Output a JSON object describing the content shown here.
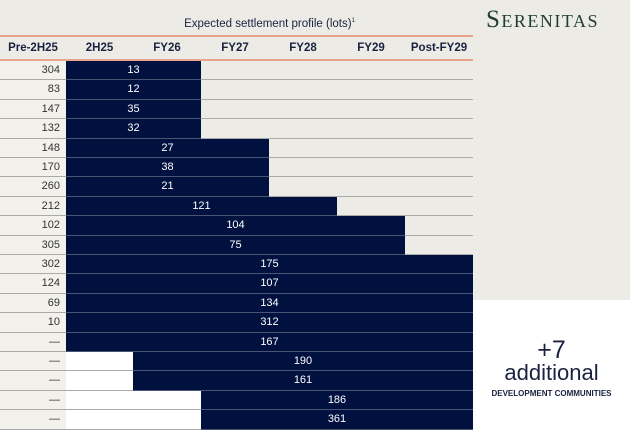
{
  "logo": "Serenitas",
  "title": "Expected settlement profile (lots)",
  "title_footnote": "1",
  "columns": [
    "Pre-2H25",
    "2H25",
    "FY26",
    "FY27",
    "FY28",
    "FY29",
    "Post-FY29"
  ],
  "rows": [
    {
      "pre": "304",
      "value": "13",
      "from": "2H25",
      "to": "FY26"
    },
    {
      "pre": "83",
      "value": "12",
      "from": "2H25",
      "to": "FY26"
    },
    {
      "pre": "147",
      "value": "35",
      "from": "2H25",
      "to": "FY26"
    },
    {
      "pre": "132",
      "value": "32",
      "from": "2H25",
      "to": "FY26"
    },
    {
      "pre": "148",
      "value": "27",
      "from": "2H25",
      "to": "FY27"
    },
    {
      "pre": "170",
      "value": "38",
      "from": "2H25",
      "to": "FY27"
    },
    {
      "pre": "260",
      "value": "21",
      "from": "2H25",
      "to": "FY27"
    },
    {
      "pre": "212",
      "value": "121",
      "from": "2H25",
      "to": "FY28"
    },
    {
      "pre": "102",
      "value": "104",
      "from": "2H25",
      "to": "FY29"
    },
    {
      "pre": "305",
      "value": "75",
      "from": "2H25",
      "to": "FY29"
    },
    {
      "pre": "302",
      "value": "175",
      "from": "2H25",
      "to": "Post-FY29"
    },
    {
      "pre": "124",
      "value": "107",
      "from": "2H25",
      "to": "Post-FY29"
    },
    {
      "pre": "69",
      "value": "134",
      "from": "2H25",
      "to": "Post-FY29"
    },
    {
      "pre": "10",
      "value": "312",
      "from": "2H25",
      "to": "Post-FY29"
    },
    {
      "pre": "—",
      "value": "167",
      "from": "2H25",
      "to": "Post-FY29"
    },
    {
      "pre": "—",
      "value": "190",
      "from": "FY26",
      "to": "Post-FY29"
    },
    {
      "pre": "—",
      "value": "161",
      "from": "FY26",
      "to": "Post-FY29"
    },
    {
      "pre": "—",
      "value": "186",
      "from": "FY27",
      "to": "Post-FY29"
    },
    {
      "pre": "—",
      "value": "361",
      "from": "FY27",
      "to": "Post-FY29"
    }
  ],
  "callout": {
    "number": "+7",
    "word": "additional",
    "caption": "DEVELOPMENT COMMUNITIES"
  },
  "colors": {
    "bar": "#00113f",
    "accent_line": "#e9a58c",
    "background": "#ecebe6"
  }
}
